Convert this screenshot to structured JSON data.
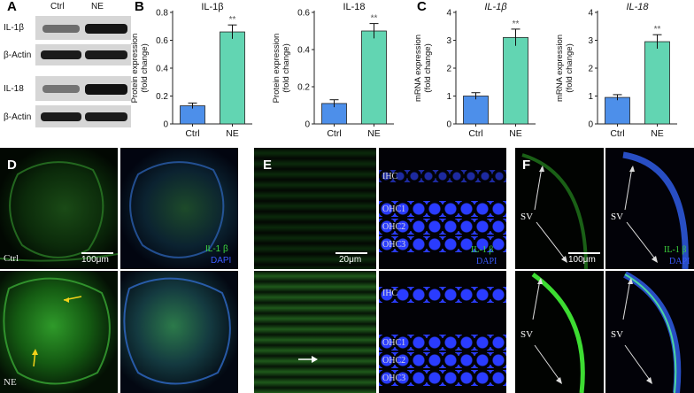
{
  "panels": {
    "a": "A",
    "b": "B",
    "c": "C",
    "d": "D",
    "e": "E",
    "f": "F"
  },
  "blot": {
    "lanes": [
      "Ctrl",
      "NE"
    ],
    "rows": [
      "IL-1β",
      "β-Actin",
      "IL-18",
      "β-Actin"
    ]
  },
  "microscopy": {
    "ctrl_label": "Ctrl",
    "ne_label": "NE",
    "stain_marker": "IL-1 β",
    "stain_nuclei": "DAPI",
    "scale_d": "100μm",
    "scale_e": "20μm",
    "scale_f": "100μm",
    "ihc": "IHC",
    "ohc1": "OHC1",
    "ohc2": "OHC2",
    "ohc3": "OHC3",
    "sv": "SV"
  },
  "colors": {
    "ctrl_bar": "#4d8fea",
    "ne_bar": "#62d5b2",
    "green": "#3dd63d",
    "blue": "#3b5bff"
  },
  "chart_data": [
    {
      "type": "bar",
      "title": "IL-1β",
      "ylabel": "Protein expression\n(fold change)",
      "categories": [
        "Ctrl",
        "NE"
      ],
      "values": [
        0.13,
        0.66
      ],
      "errors": [
        0.02,
        0.05
      ],
      "significance": [
        "",
        "**"
      ],
      "ylim": [
        0,
        0.8
      ],
      "yticks": [
        "0",
        "0.2",
        "0.4",
        "0.6",
        "0.8"
      ]
    },
    {
      "type": "bar",
      "title": "IL-18",
      "ylabel": "Protein expression\n(fold change)",
      "categories": [
        "Ctrl",
        "NE"
      ],
      "values": [
        0.11,
        0.5
      ],
      "errors": [
        0.02,
        0.04
      ],
      "significance": [
        "",
        "**"
      ],
      "ylim": [
        0,
        0.6
      ],
      "yticks": [
        "0",
        "0.2",
        "0.4",
        "0.6"
      ]
    },
    {
      "type": "bar",
      "title": "IL-1β",
      "ylabel": "mRNA expression\n(fold change)",
      "categories": [
        "Ctrl",
        "NE"
      ],
      "values": [
        1.0,
        3.1
      ],
      "errors": [
        0.12,
        0.3
      ],
      "significance": [
        "",
        "**"
      ],
      "ylim": [
        0,
        4
      ],
      "yticks": [
        "0",
        "1",
        "2",
        "3",
        "4"
      ]
    },
    {
      "type": "bar",
      "title": "IL-18",
      "ylabel": "mRNA expression\n(fold change)",
      "categories": [
        "Ctrl",
        "NE"
      ],
      "values": [
        0.95,
        2.95
      ],
      "errors": [
        0.1,
        0.25
      ],
      "significance": [
        "",
        "**"
      ],
      "ylim": [
        0,
        4
      ],
      "yticks": [
        "0",
        "1",
        "2",
        "3",
        "4"
      ]
    }
  ]
}
